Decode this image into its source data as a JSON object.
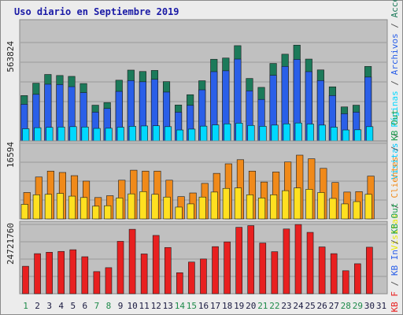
{
  "chart_data": {
    "type": "bar",
    "title": "Uso diario en Septiembre 2019",
    "categories": [
      "1",
      "2",
      "3",
      "4",
      "5",
      "6",
      "7",
      "8",
      "9",
      "10",
      "11",
      "12",
      "13",
      "14",
      "15",
      "16",
      "17",
      "18",
      "19",
      "20",
      "21",
      "22",
      "23",
      "24",
      "25",
      "26",
      "27",
      "28",
      "29",
      "30",
      "31"
    ],
    "weekend_days": [
      "1",
      "7",
      "8",
      "14",
      "15",
      "21",
      "22",
      "28",
      "29"
    ],
    "panels": [
      {
        "id": "top",
        "ytick": "563824",
        "ymax": 563824,
        "side_labels": [
          {
            "text": "Visitas",
            "color": "#00c8ff"
          },
          {
            "text": "/",
            "color": "#555555"
          },
          {
            "text": "Páginas",
            "color": "#00d8ff"
          },
          {
            "text": "/",
            "color": "#555555"
          },
          {
            "text": "Archivos",
            "color": "#2a5fe8"
          },
          {
            "text": "/",
            "color": "#555555"
          },
          {
            "text": "Accesos",
            "color": "#1c7a5a"
          }
        ],
        "series": [
          {
            "name": "Accesos",
            "color": "#1c7a5a",
            "values": [
              260000,
              331000,
              381000,
              375000,
              370000,
              329000,
              205000,
              220000,
              348000,
              406000,
              398000,
              404000,
              340000,
              206000,
              265000,
              345000,
              468000,
              475000,
              546000,
              358000,
              307000,
              444000,
              497000,
              549000,
              469000,
              407000,
              310000,
              195000,
              205000,
              427000,
              0
            ]
          },
          {
            "name": "Archivos",
            "color": "#2a5fe8",
            "values": [
              210000,
              267000,
              325000,
              323000,
              311000,
              277000,
              165000,
              186000,
              284000,
              346000,
              339000,
              353000,
              280000,
              165000,
              204000,
              293000,
              397000,
              402000,
              469000,
              287000,
              238000,
              376000,
              427000,
              467000,
              397000,
              346000,
              260000,
              156000,
              165000,
              366000,
              0
            ]
          },
          {
            "name": "Páginas",
            "color": "#00d8ff",
            "values": [
              70000,
              76000,
              78000,
              80000,
              82000,
              80000,
              72000,
              73000,
              79000,
              84000,
              86000,
              87000,
              82000,
              63000,
              68000,
              85000,
              92000,
              98000,
              102000,
              89000,
              84000,
              91000,
              98000,
              103000,
              97000,
              91000,
              79000,
              63000,
              64000,
              82000,
              0
            ]
          }
        ]
      },
      {
        "id": "middle",
        "ytick": "16594",
        "ymax": 16594,
        "side_labels": [
          {
            "text": "Visitas",
            "color": "#e8e800"
          },
          {
            "text": "/",
            "color": "#555555"
          },
          {
            "text": "Clientes",
            "color": "#f08a1a"
          },
          {
            "text": "/",
            "color": "#555555"
          },
          {
            "text": "KB Out",
            "color": "#1ea050"
          }
        ],
        "series": [
          {
            "name": "Clientes",
            "color": "#f08a1a",
            "values": [
              5800,
              9200,
              10500,
              10200,
              9500,
              8300,
              4700,
              5100,
              8500,
              10700,
              10500,
              10500,
              8500,
              4900,
              5700,
              7800,
              10000,
              12100,
              13000,
              10500,
              8100,
              10300,
              12500,
              14000,
              13200,
              11100,
              8000,
              5900,
              6000,
              9400,
              0
            ]
          },
          {
            "name": "Visitas",
            "color": "#ffe020",
            "values": [
              3200,
              5300,
              5400,
              5600,
              5000,
              4700,
              2800,
              2900,
              4600,
              5500,
              6000,
              5400,
              4800,
              2600,
              3300,
              4800,
              5900,
              6700,
              6800,
              5300,
              4600,
              5300,
              6200,
              6800,
              6500,
              5800,
              4500,
              3300,
              3800,
              5400,
              0
            ]
          }
        ]
      },
      {
        "id": "bottom",
        "ytick": "24721760",
        "ymax": 24721760,
        "side_labels": [
          {
            "text": "KB F",
            "color": "#e82020"
          },
          {
            "text": "/",
            "color": "#555555"
          },
          {
            "text": "KB In",
            "color": "#2a5fe8"
          },
          {
            "text": "/",
            "color": "#555555"
          },
          {
            "text": "KB Out",
            "color": "#1ea050"
          }
        ],
        "series": [
          {
            "name": "KB F",
            "color": "#e82020",
            "values": [
              9800000,
              14300000,
              14800000,
              15100000,
              15700000,
              13200000,
              7900000,
              9300000,
              18700000,
              23000000,
              14200000,
              20800000,
              16500000,
              7500000,
              11300000,
              12400000,
              16800000,
              18500000,
              23700000,
              24300000,
              18100000,
              15000000,
              23100000,
              24700000,
              21900000,
              16700000,
              14300000,
              8200000,
              10700000,
              16600000,
              0
            ]
          }
        ]
      }
    ]
  }
}
